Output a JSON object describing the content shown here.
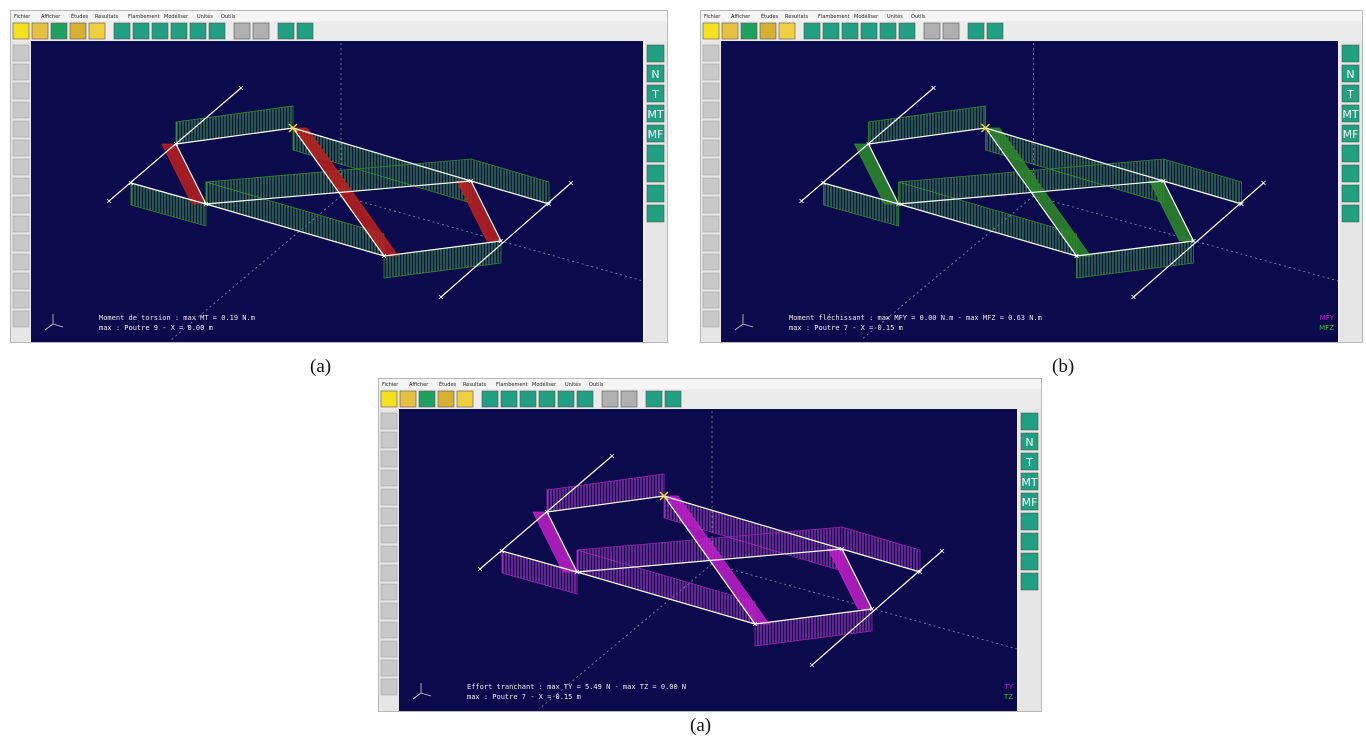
{
  "panels": [
    {
      "menu": [
        "Fichier",
        "Afficher",
        "Études",
        "Résultats",
        "Flambement",
        "Modéliser",
        "Unités",
        "Outils"
      ],
      "side_tools": [
        "N",
        "T",
        "MT",
        "MF"
      ],
      "status": [
        "Moment de torsion : max MT = 0.19 N.m",
        "max : Poutre 9 - X = 0.00 m"
      ],
      "caption": "(a)"
    },
    {
      "menu": [
        "Fichier",
        "Afficher",
        "Études",
        "Résultats",
        "Flambement",
        "Modéliser",
        "Unités",
        "Outils"
      ],
      "side_tools": [
        "N",
        "T",
        "MT",
        "MF"
      ],
      "status": [
        "Moment fléchissant : max MFY = 0.00 N.m - max MFZ = 0.63 N.m",
        "max : Poutre 7 - X = 0.15 m"
      ],
      "legend": [
        "MFY",
        "MFZ"
      ],
      "caption": "(b)"
    },
    {
      "menu": [
        "Fichier",
        "Afficher",
        "Études",
        "Résultats",
        "Flambement",
        "Modéliser",
        "Unités",
        "Outils"
      ],
      "side_tools": [
        "N",
        "T",
        "MT",
        "MF"
      ],
      "status": [
        "Effort tranchant : max TY = 5.49 N - max TZ = 0.00 N",
        "max : Poutre 7 - X = 0.15 m"
      ],
      "legend": [
        "TY",
        "TZ"
      ],
      "caption": "(a)"
    }
  ]
}
